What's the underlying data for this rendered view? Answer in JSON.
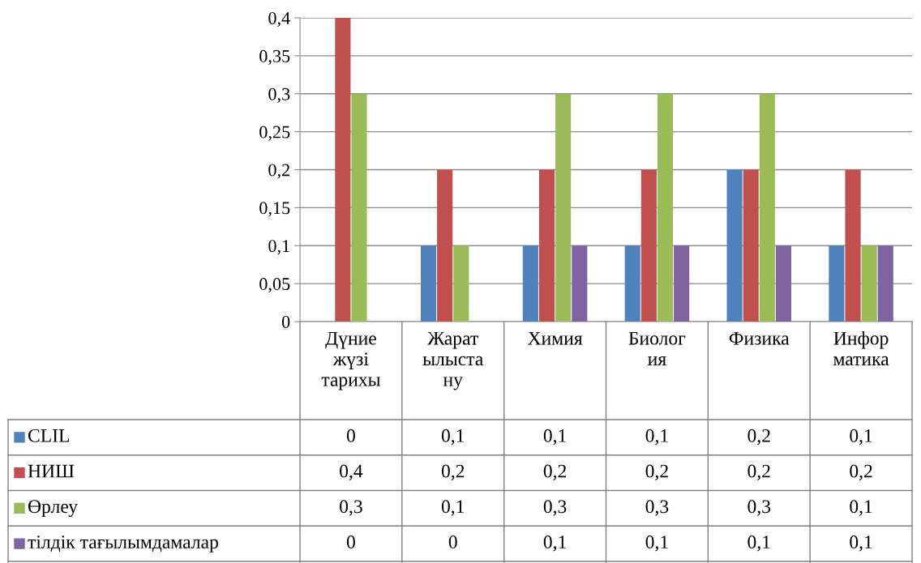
{
  "chart_data": {
    "type": "bar",
    "categories": [
      "Дүние\nжүзі\nтарихы",
      "Жарат\nылыста\nну",
      "Химия",
      "Биолог\nия",
      "Физика",
      "Инфор\nматика"
    ],
    "series": [
      {
        "name": "CLIL",
        "color": "#4f81bd",
        "values": [
          0,
          0.1,
          0.1,
          0.1,
          0.2,
          0.1
        ],
        "value_labels": [
          "0",
          "0,1",
          "0,1",
          "0,1",
          "0,2",
          "0,1"
        ]
      },
      {
        "name": "НИШ",
        "color": "#c0504d",
        "values": [
          0.4,
          0.2,
          0.2,
          0.2,
          0.2,
          0.2
        ],
        "value_labels": [
          "0,4",
          "0,2",
          "0,2",
          "0,2",
          "0,2",
          "0,2"
        ]
      },
      {
        "name": "Өрлеу",
        "color": "#9bbb59",
        "values": [
          0.3,
          0.1,
          0.3,
          0.3,
          0.3,
          0.1
        ],
        "value_labels": [
          "0,3",
          "0,1",
          "0,3",
          "0,3",
          "0,3",
          "0,1"
        ]
      },
      {
        "name": "тілдік тағылымдамалар",
        "color": "#8064a2",
        "values": [
          0,
          0,
          0.1,
          0.1,
          0.1,
          0.1
        ],
        "value_labels": [
          "0",
          "0",
          "0,1",
          "0,1",
          "0,1",
          "0,1"
        ]
      }
    ],
    "ylim": [
      0,
      0.4
    ],
    "yticks": [
      {
        "value": 0,
        "label": "0"
      },
      {
        "value": 0.05,
        "label": "0,05"
      },
      {
        "value": 0.1,
        "label": "0,1"
      },
      {
        "value": 0.15,
        "label": "0,15"
      },
      {
        "value": 0.2,
        "label": "0,2"
      },
      {
        "value": 0.25,
        "label": "0,25"
      },
      {
        "value": 0.3,
        "label": "0,3"
      },
      {
        "value": 0.35,
        "label": "0,35"
      },
      {
        "value": 0.4,
        "label": "0,4"
      }
    ],
    "grid": "y",
    "legend": "bottom"
  }
}
